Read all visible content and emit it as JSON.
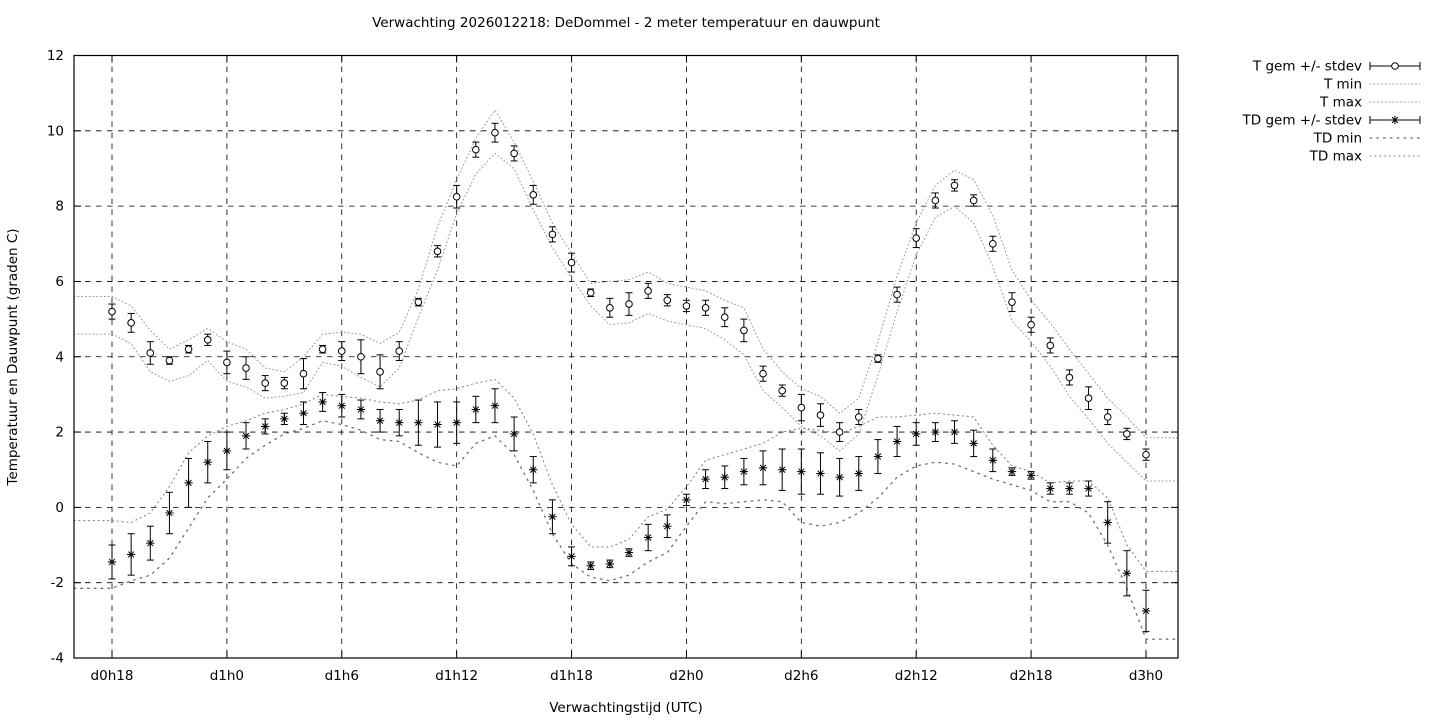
{
  "chart_data": {
    "type": "line",
    "title": "Verwachting 2026012218: DeDommel - 2 meter temperatuur en dauwpunt",
    "xlabel": "Verwachtingstijd (UTC)",
    "ylabel": "Temperatuur en Dauwpunt (graden C)",
    "ylim": [
      -4,
      12
    ],
    "yticks": [
      12,
      10,
      8,
      6,
      4,
      2,
      0,
      -2,
      -4
    ],
    "xtick_labels": [
      "d0h18",
      "d1h0",
      "d1h6",
      "d1h12",
      "d1h18",
      "d2h0",
      "d2h6",
      "d2h12",
      "d2h18",
      "d3h0"
    ],
    "xtick_indices": [
      0,
      6,
      12,
      18,
      24,
      30,
      36,
      42,
      48,
      54
    ],
    "n_points": 55,
    "grid": "on",
    "legend_position": "outside-top-right",
    "legend": [
      {
        "label": "T gem +/- stdev",
        "style": "errorbar-circle"
      },
      {
        "label": "T min",
        "style": "dotted-fine"
      },
      {
        "label": "T max",
        "style": "dotted-fine"
      },
      {
        "label": "TD gem +/- stdev",
        "style": "errorbar-asterisk"
      },
      {
        "label": "TD min",
        "style": "dotted-coarse"
      },
      {
        "label": "TD max",
        "style": "dotted-medium"
      }
    ],
    "series": [
      {
        "name": "T gem",
        "values": [
          5.2,
          4.9,
          4.1,
          3.9,
          4.2,
          4.45,
          3.85,
          3.7,
          3.3,
          3.3,
          3.55,
          4.2,
          4.15,
          4.0,
          3.6,
          4.15,
          5.45,
          6.8,
          8.25,
          9.5,
          9.95,
          9.4,
          8.3,
          7.25,
          6.5,
          5.7,
          5.3,
          5.4,
          5.75,
          5.5,
          5.35,
          5.3,
          5.05,
          4.7,
          3.55,
          3.1,
          2.65,
          2.45,
          2.0,
          2.4,
          3.95,
          5.65,
          7.15,
          8.15,
          8.55,
          8.15,
          7.0,
          5.45,
          4.85,
          4.3,
          3.45,
          2.9,
          2.4,
          1.95,
          1.4
        ],
        "stdev": [
          0.2,
          0.25,
          0.3,
          0.1,
          0.1,
          0.15,
          0.3,
          0.3,
          0.2,
          0.15,
          0.4,
          0.1,
          0.25,
          0.45,
          0.45,
          0.25,
          0.1,
          0.15,
          0.3,
          0.2,
          0.25,
          0.2,
          0.25,
          0.2,
          0.25,
          0.1,
          0.25,
          0.3,
          0.2,
          0.15,
          0.15,
          0.2,
          0.25,
          0.3,
          0.2,
          0.15,
          0.35,
          0.3,
          0.25,
          0.2,
          0.1,
          0.2,
          0.25,
          0.2,
          0.15,
          0.15,
          0.2,
          0.25,
          0.2,
          0.2,
          0.2,
          0.3,
          0.2,
          0.15,
          0.15
        ]
      },
      {
        "name": "T min",
        "values": [
          4.6,
          4.35,
          3.6,
          3.35,
          3.5,
          3.9,
          3.35,
          3.2,
          2.9,
          2.95,
          3.05,
          3.85,
          3.75,
          3.45,
          3.2,
          3.7,
          5.05,
          6.3,
          7.8,
          8.85,
          9.4,
          9.0,
          7.9,
          6.9,
          6.1,
          5.35,
          4.85,
          4.9,
          5.15,
          4.95,
          4.85,
          4.75,
          4.45,
          4.05,
          3.1,
          2.65,
          2.15,
          1.9,
          1.5,
          1.95,
          3.5,
          5.2,
          6.7,
          7.7,
          8.0,
          7.55,
          6.4,
          4.95,
          4.4,
          3.75,
          2.95,
          2.35,
          1.7,
          1.2,
          0.7
        ]
      },
      {
        "name": "T max",
        "values": [
          5.6,
          5.35,
          4.7,
          4.2,
          4.45,
          4.75,
          4.4,
          4.2,
          3.7,
          3.6,
          4.0,
          4.6,
          4.65,
          4.6,
          4.35,
          4.65,
          5.8,
          7.45,
          8.7,
          9.8,
          10.55,
          9.7,
          8.65,
          7.55,
          6.75,
          5.95,
          6.0,
          6.05,
          6.25,
          5.95,
          5.85,
          5.75,
          5.5,
          5.3,
          4.2,
          3.6,
          3.15,
          2.95,
          2.5,
          2.9,
          4.4,
          6.15,
          7.55,
          8.55,
          8.95,
          8.7,
          7.75,
          6.3,
          5.5,
          4.9,
          4.2,
          3.55,
          2.9,
          2.4,
          1.85
        ]
      },
      {
        "name": "TD gem",
        "values": [
          -1.45,
          -1.25,
          -0.95,
          -0.15,
          0.65,
          1.2,
          1.5,
          1.9,
          2.15,
          2.35,
          2.5,
          2.8,
          2.7,
          2.6,
          2.3,
          2.25,
          2.25,
          2.2,
          2.25,
          2.6,
          2.7,
          1.95,
          1.0,
          -0.25,
          -1.3,
          -1.55,
          -1.5,
          -1.2,
          -0.8,
          -0.5,
          0.2,
          0.75,
          0.8,
          0.95,
          1.05,
          1.0,
          0.95,
          0.9,
          0.8,
          0.9,
          1.35,
          1.75,
          1.95,
          2.0,
          2.0,
          1.7,
          1.25,
          0.95,
          0.85,
          0.5,
          0.5,
          0.5,
          -0.4,
          -1.75,
          -2.75
        ],
        "stdev": [
          0.45,
          0.55,
          0.45,
          0.55,
          0.65,
          0.55,
          0.5,
          0.35,
          0.2,
          0.15,
          0.3,
          0.25,
          0.3,
          0.25,
          0.3,
          0.35,
          0.6,
          0.6,
          0.55,
          0.35,
          0.45,
          0.45,
          0.35,
          0.45,
          0.25,
          0.1,
          0.1,
          0.1,
          0.35,
          0.3,
          0.15,
          0.25,
          0.3,
          0.35,
          0.45,
          0.55,
          0.6,
          0.55,
          0.5,
          0.45,
          0.45,
          0.4,
          0.3,
          0.25,
          0.3,
          0.35,
          0.3,
          0.1,
          0.1,
          0.15,
          0.15,
          0.2,
          0.55,
          0.6,
          0.55
        ]
      },
      {
        "name": "TD min",
        "values": [
          -2.15,
          -1.95,
          -1.8,
          -1.35,
          -0.55,
          0.25,
          0.75,
          1.3,
          1.65,
          1.95,
          2.1,
          2.3,
          2.2,
          2.05,
          1.8,
          1.75,
          1.45,
          1.2,
          1.1,
          1.7,
          1.9,
          1.4,
          0.45,
          -0.7,
          -1.5,
          -1.85,
          -1.95,
          -1.8,
          -1.45,
          -1.2,
          -0.5,
          0.15,
          0.1,
          0.15,
          0.2,
          0.15,
          -0.4,
          -0.5,
          -0.4,
          -0.15,
          0.25,
          0.8,
          1.1,
          1.2,
          1.15,
          0.95,
          0.75,
          0.6,
          0.45,
          0.15,
          0.15,
          -0.15,
          -1.0,
          -2.15,
          -3.5
        ]
      },
      {
        "name": "TD max",
        "values": [
          -0.35,
          -0.4,
          -0.15,
          0.55,
          1.45,
          1.9,
          2.15,
          2.3,
          2.5,
          2.6,
          2.75,
          3.0,
          2.95,
          2.9,
          2.8,
          2.75,
          2.85,
          3.1,
          3.15,
          3.3,
          3.4,
          2.9,
          1.95,
          0.6,
          -0.45,
          -1.05,
          -1.05,
          -0.85,
          -0.25,
          -0.05,
          0.55,
          1.25,
          1.4,
          1.55,
          1.7,
          2.0,
          2.1,
          2.05,
          1.95,
          2.15,
          2.4,
          2.4,
          2.45,
          2.5,
          2.45,
          2.4,
          1.65,
          1.1,
          0.95,
          0.65,
          0.7,
          0.7,
          0.25,
          -1.0,
          -1.7
        ]
      }
    ],
    "colors": {
      "foreground": "#000000",
      "background": "#ffffff",
      "t_minmax_dotted": "#999999",
      "td_max_dotted": "#8a8a8a",
      "td_min_dotted": "#6e6e6e"
    }
  }
}
